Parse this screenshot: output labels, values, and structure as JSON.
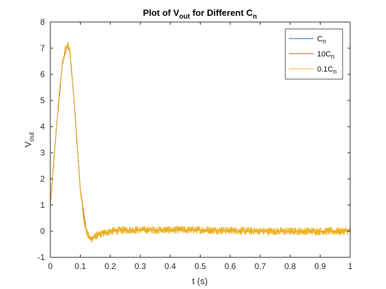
{
  "chart_data": {
    "type": "line",
    "title": {
      "main": "Plot of V",
      "sub1": "out",
      "mid": " for Different C",
      "sub2": "n"
    },
    "xlabel": "t (s)",
    "ylabel": {
      "main": "V",
      "sub": "out"
    },
    "xlim": [
      0,
      1
    ],
    "ylim": [
      -1,
      8
    ],
    "xticks": [
      0,
      0.1,
      0.2,
      0.3,
      0.4,
      0.5,
      0.6,
      0.7,
      0.8,
      0.9,
      1
    ],
    "xtick_labels": [
      "0",
      "0.1",
      "0.2",
      "0.3",
      "0.4",
      "0.5",
      "0.6",
      "0.7",
      "0.8",
      "0.9",
      "1"
    ],
    "yticks": [
      -1,
      0,
      1,
      2,
      3,
      4,
      5,
      6,
      7,
      8
    ],
    "ytick_labels": [
      "-1",
      "0",
      "1",
      "2",
      "3",
      "4",
      "5",
      "6",
      "7",
      "8"
    ],
    "grid": false,
    "legend_position": "top-right",
    "series": [
      {
        "name": {
          "main": "C",
          "sub": "n"
        },
        "color": "#0072BD",
        "points": [
          [
            0,
            1.0
          ],
          [
            0.02,
            3.9
          ],
          [
            0.04,
            6.4
          ],
          [
            0.055,
            7.05
          ],
          [
            0.065,
            6.9
          ],
          [
            0.08,
            4.9
          ],
          [
            0.1,
            1.6
          ],
          [
            0.12,
            0.0
          ],
          [
            0.135,
            -0.3
          ],
          [
            0.15,
            -0.15
          ],
          [
            0.2,
            0.0
          ],
          [
            0.3,
            0.05
          ],
          [
            0.5,
            0.05
          ],
          [
            0.7,
            0.0
          ],
          [
            1.0,
            0.0
          ]
        ]
      },
      {
        "name": {
          "main": "10C",
          "sub": "n"
        },
        "color": "#D95319",
        "points": [
          [
            0,
            1.0
          ],
          [
            0.02,
            3.9
          ],
          [
            0.04,
            6.4
          ],
          [
            0.055,
            7.05
          ],
          [
            0.065,
            6.9
          ],
          [
            0.08,
            4.9
          ],
          [
            0.1,
            1.6
          ],
          [
            0.12,
            0.0
          ],
          [
            0.135,
            -0.3
          ],
          [
            0.15,
            -0.15
          ],
          [
            0.2,
            0.0
          ],
          [
            0.3,
            0.05
          ],
          [
            0.5,
            0.05
          ],
          [
            0.7,
            0.0
          ],
          [
            1.0,
            0.0
          ]
        ]
      },
      {
        "name": {
          "main": "0.1C",
          "sub": "n"
        },
        "color": "#EDB120",
        "points": [
          [
            0,
            1.0
          ],
          [
            0.01,
            2.4
          ],
          [
            0.02,
            3.9
          ],
          [
            0.03,
            5.3
          ],
          [
            0.04,
            6.4
          ],
          [
            0.05,
            7.0
          ],
          [
            0.055,
            7.05
          ],
          [
            0.06,
            7.1
          ],
          [
            0.065,
            6.9
          ],
          [
            0.07,
            6.3
          ],
          [
            0.08,
            4.9
          ],
          [
            0.09,
            3.2
          ],
          [
            0.1,
            1.6
          ],
          [
            0.11,
            0.6
          ],
          [
            0.12,
            0.0
          ],
          [
            0.13,
            -0.25
          ],
          [
            0.14,
            -0.3
          ],
          [
            0.15,
            -0.2
          ],
          [
            0.17,
            -0.1
          ],
          [
            0.2,
            0.0
          ],
          [
            0.25,
            0.05
          ],
          [
            0.3,
            0.05
          ],
          [
            0.4,
            0.05
          ],
          [
            0.5,
            0.05
          ],
          [
            0.6,
            0.03
          ],
          [
            0.7,
            0.0
          ],
          [
            0.8,
            0.0
          ],
          [
            0.9,
            0.0
          ],
          [
            1.0,
            0.0
          ]
        ],
        "noise_amplitude": 0.15
      }
    ]
  }
}
